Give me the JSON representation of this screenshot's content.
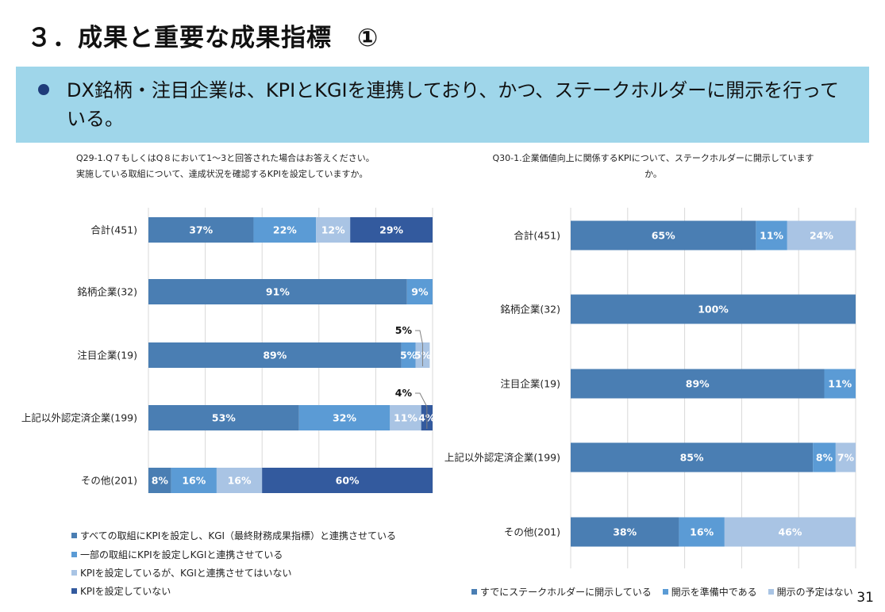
{
  "header": {
    "title": "３．成果と重要な成果指標　①",
    "banner": "DX銘柄・注目企業は、KPIとKGIを連携しており、かつ、ステークホルダーに開示を行っている。"
  },
  "page_number": "31",
  "colors": {
    "c1": "#4a7eb3",
    "c2": "#5b9bd5",
    "c3": "#a9c4e4",
    "c4": "#335a9e",
    "banner_bg": "#9fd6ea",
    "grid": "#d9d9d9"
  },
  "chart_data": [
    {
      "type": "bar",
      "orientation": "horizontal",
      "stacked": "percent",
      "title_lines": [
        "Q29-1.Q７もしくはQ８において1～3と回答された場合はお答えください。",
        "実施している取組について、達成状況を確認するKPIを設定していますか。"
      ],
      "categories": [
        "合計(451)",
        "銘柄企業(32)",
        "注目企業(19)",
        "上記以外認定済企業(199)",
        "その他(201)"
      ],
      "series": [
        {
          "name": "すべての取組にKPIを設定し、KGI（最終財務成果指標）と連携させている",
          "color": "#4a7eb3",
          "values": [
            37,
            91,
            89,
            53,
            8
          ]
        },
        {
          "name": "一部の取組にKPIを設定しKGIと連携させている",
          "color": "#5b9bd5",
          "values": [
            22,
            9,
            5,
            32,
            16
          ]
        },
        {
          "name": "KPIを設定しているが、KGIと連携させてはいない",
          "color": "#a9c4e4",
          "values": [
            12,
            0,
            5,
            11,
            16
          ]
        },
        {
          "name": "KPIを設定していない",
          "color": "#335a9e",
          "values": [
            29,
            0,
            0,
            4,
            60
          ]
        }
      ],
      "callouts": [
        {
          "category_index": 2,
          "series_index": 2,
          "text": "5%"
        },
        {
          "category_index": 3,
          "series_index": 3,
          "text": "4%"
        }
      ],
      "xlim": [
        0,
        100
      ],
      "grid": true,
      "legend": "bottom-left"
    },
    {
      "type": "bar",
      "orientation": "horizontal",
      "stacked": "percent",
      "title_lines": [
        "Q30-1.企業価値向上に関係するKPIについて、ステークホルダーに開示しています",
        "か。"
      ],
      "categories": [
        "合計(451)",
        "銘柄企業(32)",
        "注目企業(19)",
        "上記以外認定済企業(199)",
        "その他(201)"
      ],
      "series": [
        {
          "name": "すでにステークホルダーに開示している",
          "color": "#4a7eb3",
          "values": [
            65,
            100,
            89,
            85,
            38
          ]
        },
        {
          "name": "開示を準備中である",
          "color": "#5b9bd5",
          "values": [
            11,
            0,
            11,
            8,
            16
          ]
        },
        {
          "name": "開示の予定はない",
          "color": "#a9c4e4",
          "values": [
            24,
            0,
            0,
            7,
            46
          ]
        }
      ],
      "callouts": [],
      "xlim": [
        0,
        100
      ],
      "grid": true,
      "legend": "bottom"
    }
  ]
}
